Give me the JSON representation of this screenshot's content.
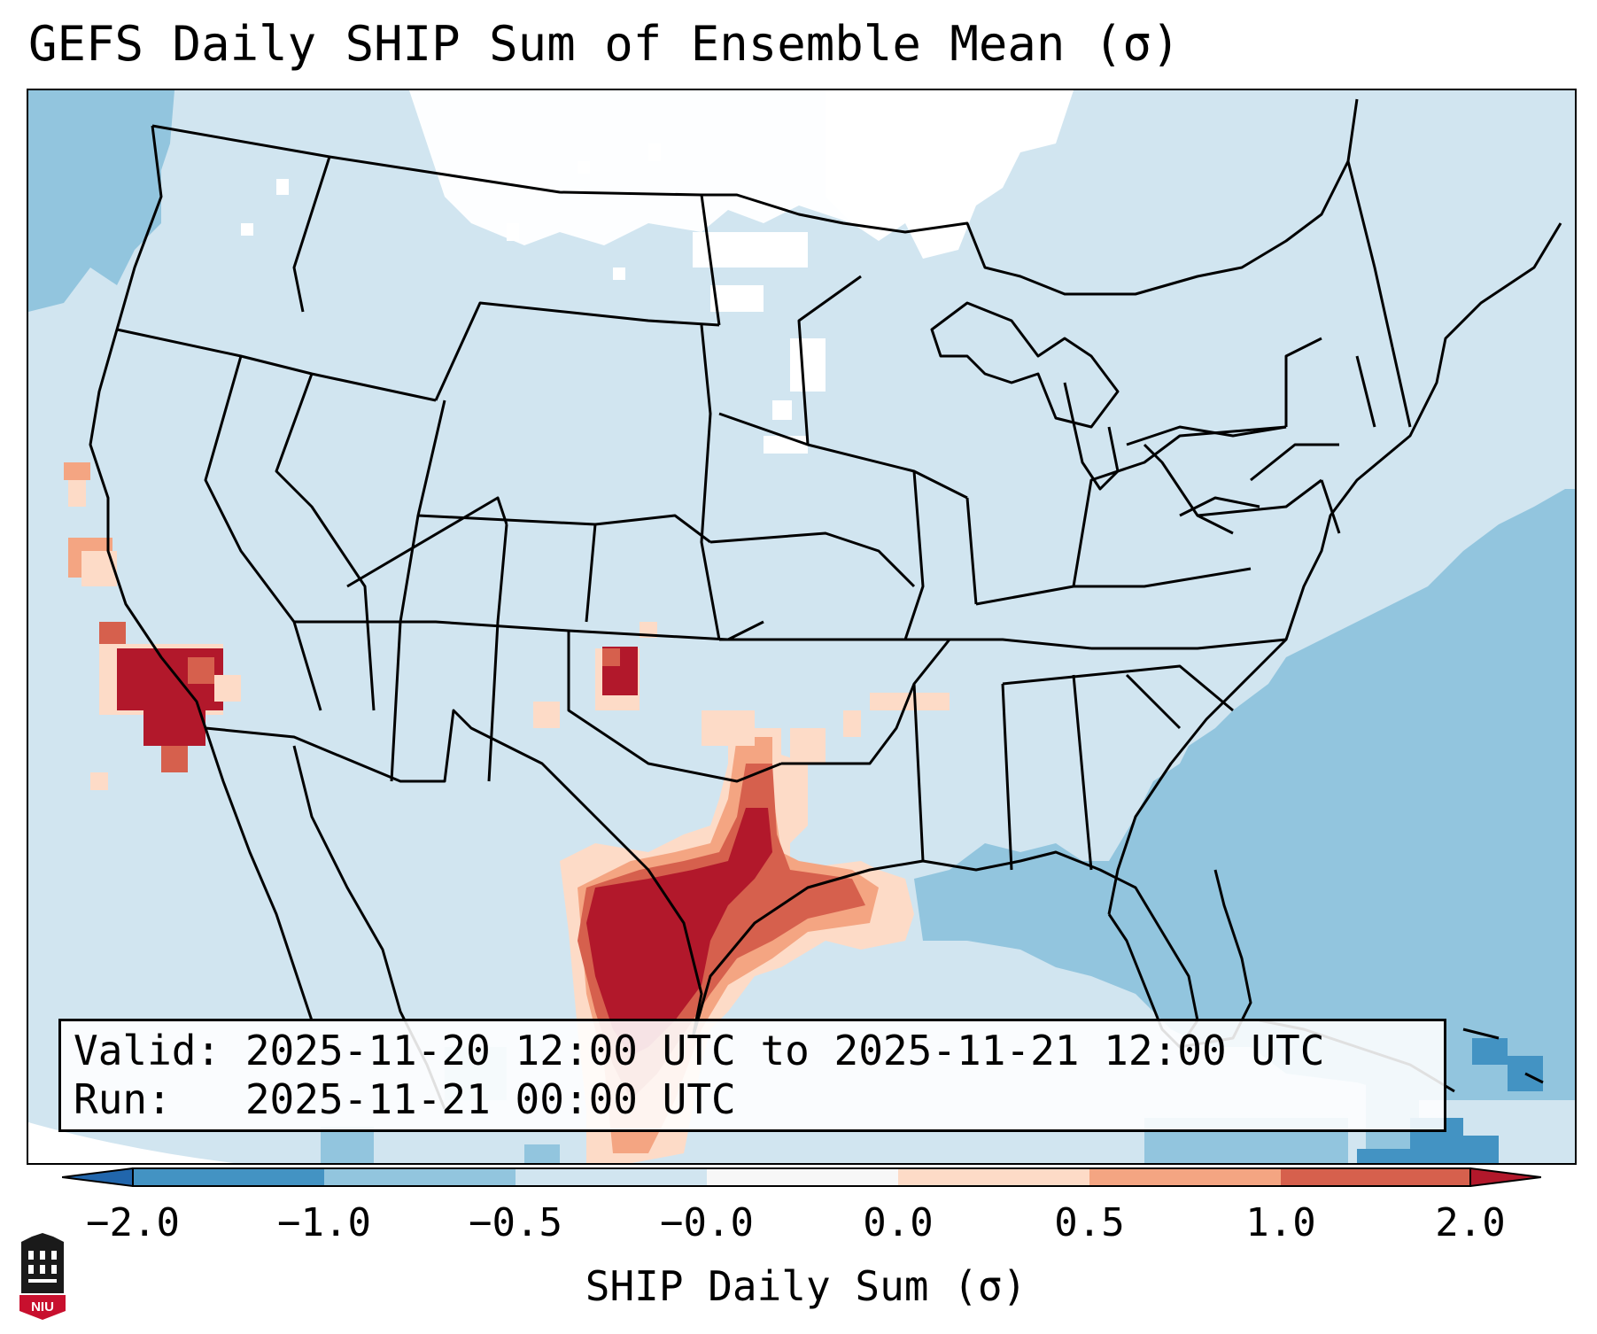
{
  "title": "GEFS Daily SHIP Sum of Ensemble Mean (σ)",
  "info": {
    "valid_line": "Valid: 2025-11-20 12:00 UTC to 2025-11-21 12:00 UTC",
    "run_line": "Run:   2025-11-21 00:00 UTC"
  },
  "colorbar": {
    "label": "SHIP Daily Sum (σ)",
    "ticks": [
      "−2.0",
      "−1.0",
      "−0.5",
      "−0.0",
      "0.0",
      "0.5",
      "1.0",
      "2.0"
    ],
    "colors": [
      "#4393c3",
      "#92c5de",
      "#d1e5f0",
      "#f7f7f7",
      "#fddbc7",
      "#f4a582",
      "#d6604d",
      "#b2182b"
    ],
    "extend": "both"
  },
  "legend_colors": {
    "land_background": "#d1e5f0",
    "ocean": "#92c5de",
    "deep_anomaly": "#4393c3",
    "high_anomaly": "#b2182b"
  },
  "logo": {
    "text": "NIU",
    "icon": "university-shield-icon"
  }
}
